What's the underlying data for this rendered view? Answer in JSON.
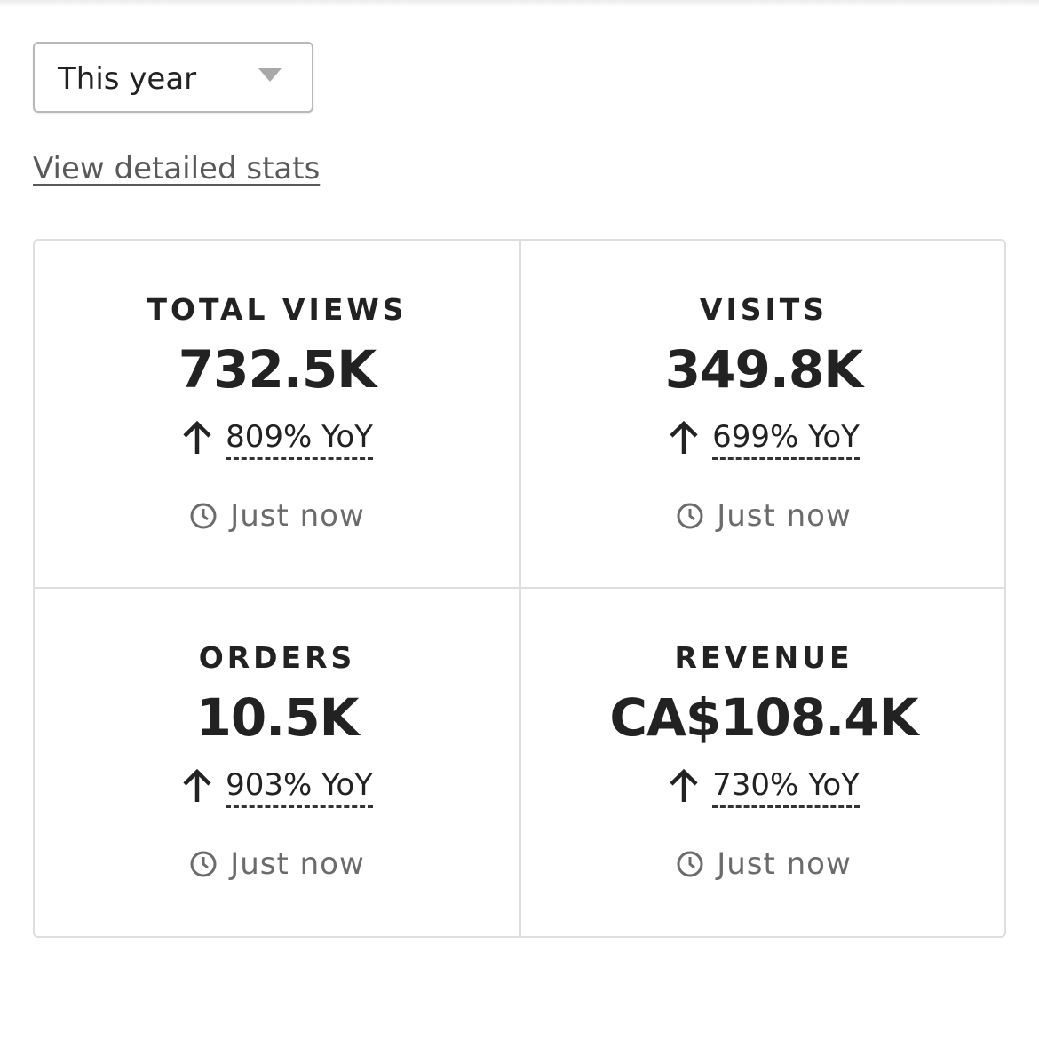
{
  "filter": {
    "selected": "This year",
    "caret_icon": "triangle-down-icon"
  },
  "links": {
    "detailed_stats": "View detailed stats"
  },
  "stats": [
    {
      "title": "TOTAL VIEWS",
      "value": "732.5K",
      "change": "809% YoY",
      "trend_icon": "arrow-up-icon",
      "updated": "Just now",
      "updated_icon": "clock-icon"
    },
    {
      "title": "VISITS",
      "value": "349.8K",
      "change": "699% YoY",
      "trend_icon": "arrow-up-icon",
      "updated": "Just now",
      "updated_icon": "clock-icon"
    },
    {
      "title": "ORDERS",
      "value": "10.5K",
      "change": "903% YoY",
      "trend_icon": "arrow-up-icon",
      "updated": "Just now",
      "updated_icon": "clock-icon"
    },
    {
      "title": "REVENUE",
      "value": "CA$108.4K",
      "change": "730% YoY",
      "trend_icon": "arrow-up-icon",
      "updated": "Just now",
      "updated_icon": "clock-icon"
    }
  ],
  "colors": {
    "text": "#222222",
    "muted": "#6b6b6b",
    "border": "#dedede",
    "select_border": "#b8b8b8"
  }
}
